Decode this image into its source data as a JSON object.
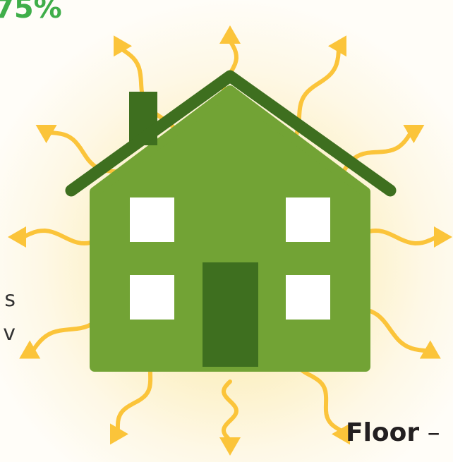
{
  "heat_loss": {
    "percentage": "75%",
    "text_fragment_1": "s",
    "text_fragment_2": "v",
    "floor_label": "Floor",
    "floor_dash": " –"
  },
  "colors": {
    "house_wall": "#72a335",
    "house_dark": "#3e6f1f",
    "window": "#ffffff",
    "arrow": "#fbc43a",
    "percent_text": "#3fae49",
    "glow": "#fbe9a8"
  },
  "icons": {
    "house": "house-icon",
    "heat_arrow": "wavy-arrow-icon"
  }
}
